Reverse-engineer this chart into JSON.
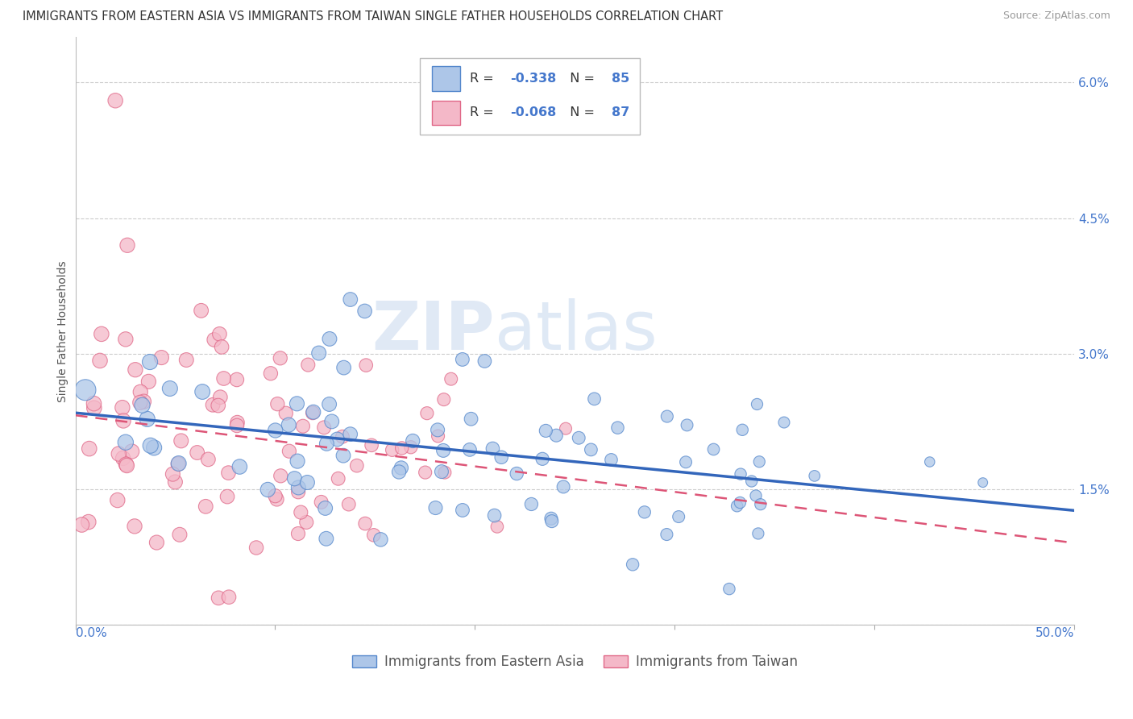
{
  "title": "IMMIGRANTS FROM EASTERN ASIA VS IMMIGRANTS FROM TAIWAN SINGLE FATHER HOUSEHOLDS CORRELATION CHART",
  "source": "Source: ZipAtlas.com",
  "ylabel": "Single Father Households",
  "legend_label1": "Immigrants from Eastern Asia",
  "legend_label2": "Immigrants from Taiwan",
  "R1": -0.338,
  "N1": 85,
  "R2": -0.068,
  "N2": 87,
  "color_blue_fill": "#adc6e8",
  "color_pink_fill": "#f4b8c8",
  "color_blue_edge": "#5588cc",
  "color_pink_edge": "#e06888",
  "color_blue_line": "#3366bb",
  "color_pink_line": "#dd5577",
  "color_tick_label": "#4477cc",
  "xlim": [
    0.0,
    0.5
  ],
  "ylim": [
    0.0,
    0.065
  ],
  "yticks": [
    0.0,
    0.015,
    0.03,
    0.045,
    0.06
  ],
  "ytick_labels": [
    "",
    "1.5%",
    "3.0%",
    "4.5%",
    "6.0%"
  ],
  "xtick_left_label": "0.0%",
  "xtick_right_label": "50.0%",
  "watermark_zip": "ZIP",
  "watermark_atlas": "atlas",
  "background_color": "#ffffff",
  "grid_color": "#cccccc",
  "title_fontsize": 10.5,
  "source_fontsize": 9,
  "legend_fontsize": 12,
  "tick_fontsize": 11
}
